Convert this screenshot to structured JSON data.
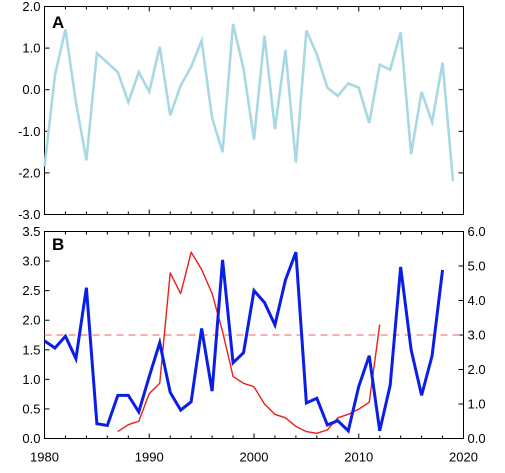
{
  "chart_data": [
    {
      "type": "line",
      "panel_label": "A",
      "x": [
        1980,
        1981,
        1982,
        1983,
        1984,
        1985,
        1986,
        1987,
        1988,
        1989,
        1990,
        1991,
        1992,
        1993,
        1994,
        1995,
        1996,
        1997,
        1998,
        1999,
        2000,
        2001,
        2002,
        2003,
        2004,
        2005,
        2006,
        2007,
        2008,
        2009,
        2010,
        2011,
        2012,
        2013,
        2014,
        2015,
        2016,
        2017,
        2018,
        2019
      ],
      "series": [
        {
          "color": "#a8d8e4",
          "values": [
            -1.85,
            0.35,
            1.45,
            -0.3,
            -1.7,
            0.88,
            0.65,
            0.42,
            -0.3,
            0.42,
            -0.05,
            1.03,
            -0.62,
            0.1,
            0.55,
            1.18,
            -0.68,
            -1.5,
            1.58,
            0.5,
            -1.2,
            1.3,
            -0.95,
            0.95,
            -1.75,
            1.42,
            0.85,
            0.05,
            -0.15,
            0.15,
            0.05,
            -0.8,
            0.6,
            0.48,
            1.38,
            -1.55,
            -0.05,
            -0.78,
            0.65,
            -2.2
          ]
        }
      ],
      "xlim": [
        1980,
        2020
      ],
      "ylim": [
        -3.0,
        2.0
      ],
      "xticks": [
        1980,
        1990,
        2000,
        2010,
        2020
      ],
      "yticks": [
        "-3.0",
        "-2.0",
        "-1.0",
        "0.0",
        "1.0",
        "2.0"
      ],
      "grid": false,
      "legend": "none"
    },
    {
      "type": "line",
      "panel_label": "B",
      "x_blue": [
        1980,
        1981,
        1982,
        1983,
        1984,
        1985,
        1986,
        1987,
        1988,
        1989,
        1990,
        1991,
        1992,
        1993,
        1994,
        1995,
        1996,
        1997,
        1998,
        1999,
        2000,
        2001,
        2002,
        2003,
        2004,
        2005,
        2006,
        2007,
        2008,
        2009,
        2010,
        2011,
        2012,
        2013,
        2014,
        2015,
        2016,
        2017,
        2018
      ],
      "x_red": [
        1987,
        1988,
        1989,
        1990,
        1991,
        1992,
        1993,
        1994,
        1995,
        1996,
        1997,
        1998,
        1999,
        2000,
        2001,
        2002,
        2003,
        2004,
        2005,
        2006,
        2007,
        2008,
        2009,
        2010,
        2011,
        2012
      ],
      "series": [
        {
          "color": "#0a1ee6",
          "axis": "left",
          "values": [
            1.65,
            1.53,
            1.73,
            1.35,
            2.55,
            0.25,
            0.22,
            0.73,
            0.73,
            0.45,
            1.05,
            1.62,
            0.78,
            0.48,
            0.62,
            1.86,
            0.8,
            3.02,
            1.28,
            1.45,
            2.5,
            2.3,
            1.92,
            2.68,
            3.15,
            0.6,
            0.68,
            0.23,
            0.3,
            0.13,
            0.88,
            1.4,
            0.13,
            0.9,
            2.9,
            1.5,
            0.73,
            1.4,
            2.85
          ]
        },
        {
          "color": "#e8201a",
          "axis": "right",
          "values": [
            0.2,
            0.4,
            0.5,
            1.3,
            1.6,
            4.8,
            4.2,
            5.4,
            4.9,
            4.2,
            3.1,
            1.8,
            1.6,
            1.5,
            1.0,
            0.7,
            0.6,
            0.35,
            0.2,
            0.15,
            0.25,
            0.6,
            0.7,
            0.85,
            1.05,
            3.3
          ]
        }
      ],
      "reference_line": {
        "axis": "right",
        "value": 3.0,
        "color": "#f08080",
        "style": "dashed"
      },
      "xlim": [
        1980,
        2020
      ],
      "ylim_left": [
        0.0,
        3.5
      ],
      "ylim_right": [
        0.0,
        6.0
      ],
      "xticks": [
        "1980",
        "1990",
        "2000",
        "2010",
        "2020"
      ],
      "yticks_left": [
        "0.0",
        "0.5",
        "1.0",
        "1.5",
        "2.0",
        "2.5",
        "3.0",
        "3.5"
      ],
      "yticks_right": [
        "0.0",
        "1.0",
        "2.0",
        "3.0",
        "4.0",
        "5.0",
        "6.0"
      ],
      "grid": false,
      "legend": "none"
    }
  ]
}
